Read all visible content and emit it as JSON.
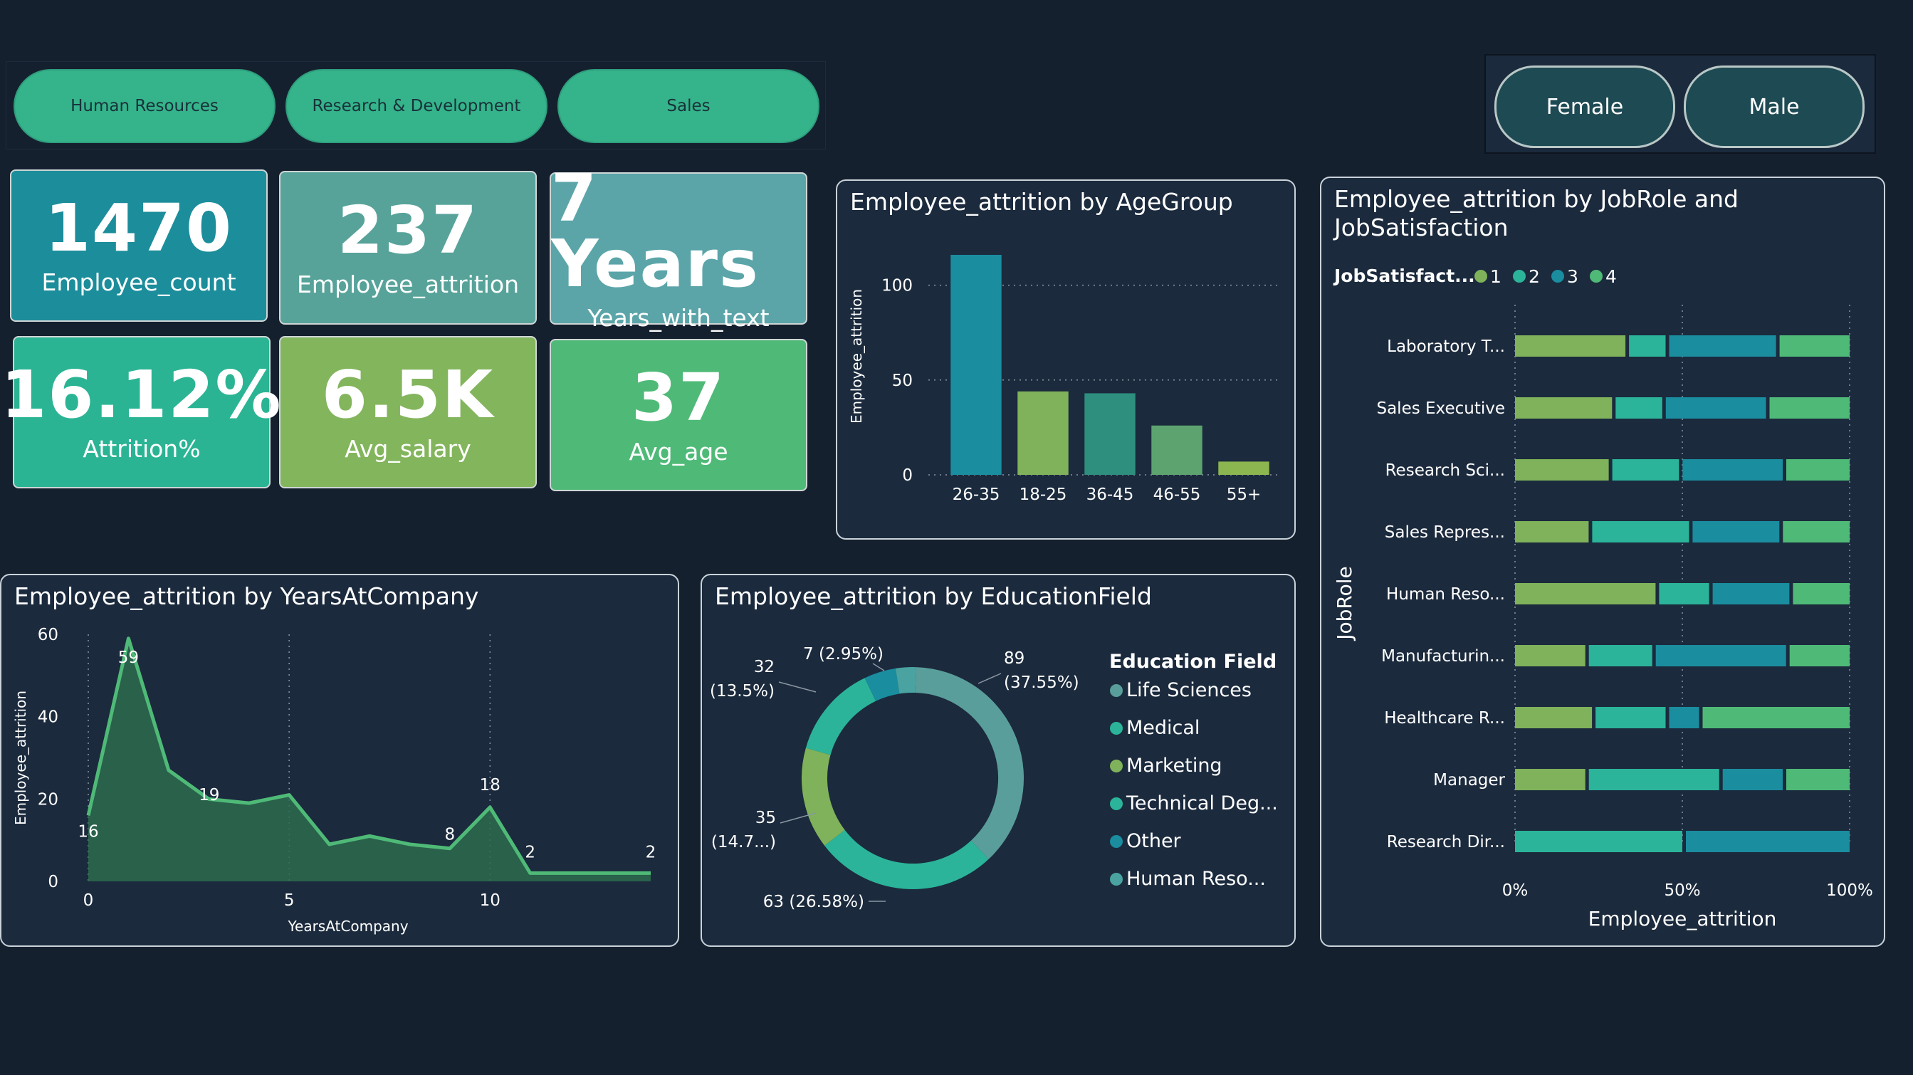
{
  "department_slicer": {
    "items": [
      "Human Resources",
      "Research & Development",
      "Sales"
    ]
  },
  "gender_slicer": {
    "items": [
      "Female",
      "Male"
    ]
  },
  "kpis": [
    {
      "value": "1470",
      "label": "Employee_count",
      "color": "#1c8d9b"
    },
    {
      "value": "237",
      "label": "Employee_attrition",
      "color": "#57a39a"
    },
    {
      "value": "7 Years",
      "label": "Years_with_text",
      "color": "#5ba5a9"
    },
    {
      "value": "16.12%",
      "label": "Attrition%",
      "color": "#2bb494"
    },
    {
      "value": "6.5K",
      "label": "Avg_salary",
      "color": "#83b55d"
    },
    {
      "value": "37",
      "label": "Avg_age",
      "color": "#4fba77"
    }
  ],
  "colors": {
    "background": "#15202f",
    "panel": "#1b2a3d",
    "green_light": "#7fb25a",
    "teal": "#2bb49a",
    "blue_teal": "#1a8d9f",
    "green": "#4fba77",
    "sage": "#5a9e9b"
  },
  "chart_data": [
    {
      "type": "bar",
      "title": "Employee_attrition by AgeGroup",
      "xlabel": "",
      "ylabel": "Employee_attrition",
      "categories": [
        "26-35",
        "18-25",
        "36-45",
        "46-55",
        "55+"
      ],
      "values": [
        116,
        44,
        43,
        26,
        7
      ],
      "colors": [
        "#1a8d9f",
        "#7fb25a",
        "#2e8f7f",
        "#5da370",
        "#8cb64f"
      ],
      "y_ticks": [
        "0",
        "50",
        "100"
      ],
      "ylim": [
        0,
        125
      ],
      "grid": true
    },
    {
      "type": "area",
      "title": "Employee_attrition by YearsAtCompany",
      "xlabel": "YearsAtCompany",
      "ylabel": "Employee_attrition",
      "x": [
        0,
        1,
        2,
        3,
        4,
        5,
        6,
        7,
        8,
        9,
        10,
        11,
        12,
        13,
        14
      ],
      "values": [
        16,
        59,
        27,
        20,
        19,
        21,
        9,
        11,
        9,
        8,
        18,
        2,
        2,
        2,
        2
      ],
      "labeled_points": [
        {
          "x": 0,
          "label": "16"
        },
        {
          "x": 1,
          "label": "59"
        },
        {
          "x": 4,
          "label": "19"
        },
        {
          "x": 9,
          "label": "8"
        },
        {
          "x": 10,
          "label": "18"
        },
        {
          "x": 11,
          "label": "2"
        },
        {
          "x": 14,
          "label": "2"
        }
      ],
      "x_ticks": [
        "0",
        "5",
        "10"
      ],
      "y_ticks": [
        "0",
        "20",
        "40",
        "60"
      ],
      "xlim": [
        0,
        14
      ],
      "ylim": [
        0,
        60
      ],
      "line_color": "#4fba77",
      "fill_color": "#2b6b4d"
    },
    {
      "type": "pie",
      "title": "Employee_attrition by EducationField",
      "legend_title": "Education Field",
      "legend": [
        "Life Sciences",
        "Medical",
        "Marketing",
        "Technical Deg...",
        "Other",
        "Human Reso..."
      ],
      "values": [
        89,
        63,
        35,
        32,
        11,
        7
      ],
      "colors": [
        "#5a9e9b",
        "#2bb49a",
        "#7fb25a",
        "#2bb49a",
        "#1a8d9f",
        "#4aa3a1"
      ],
      "data_labels": [
        {
          "value": "89",
          "pct": "(37.55%)"
        },
        {
          "value": "63 (26.58%)",
          "pct": ""
        },
        {
          "value": "35",
          "pct": "(14.7...)"
        },
        {
          "value": "32",
          "pct": "(13.5%)"
        },
        {
          "value": "7 (2.95%)",
          "pct": ""
        }
      ],
      "donut": true
    },
    {
      "type": "bar",
      "orientation": "horizontal-100%-stacked",
      "title": "Employee_attrition by JobRole and JobSatisfaction",
      "legend_title": "JobSatisfact...",
      "legend": [
        "1",
        "2",
        "3",
        "4"
      ],
      "legend_colors": [
        "#7fb25a",
        "#2bb49a",
        "#1a8d9f",
        "#4fba77"
      ],
      "ylabel": "JobRole",
      "xlabel": "Employee_attrition",
      "x_ticks": [
        "0%",
        "50%",
        "100%"
      ],
      "categories": [
        "Laboratory T...",
        "Sales Executive",
        "Research Sci...",
        "Sales Repres...",
        "Human Reso...",
        "Manufacturin...",
        "Healthcare R...",
        "Manager",
        "Research Dir..."
      ],
      "series": [
        {
          "name": "1",
          "values": [
            0.33,
            0.29,
            0.28,
            0.22,
            0.42,
            0.21,
            0.23,
            0.21,
            0.0
          ]
        },
        {
          "name": "2",
          "values": [
            0.12,
            0.15,
            0.21,
            0.3,
            0.16,
            0.2,
            0.22,
            0.4,
            0.5
          ]
        },
        {
          "name": "3",
          "values": [
            0.33,
            0.31,
            0.31,
            0.27,
            0.24,
            0.4,
            0.1,
            0.19,
            0.5
          ]
        },
        {
          "name": "4",
          "values": [
            0.22,
            0.25,
            0.2,
            0.21,
            0.18,
            0.19,
            0.45,
            0.2,
            0.0
          ]
        }
      ]
    }
  ]
}
